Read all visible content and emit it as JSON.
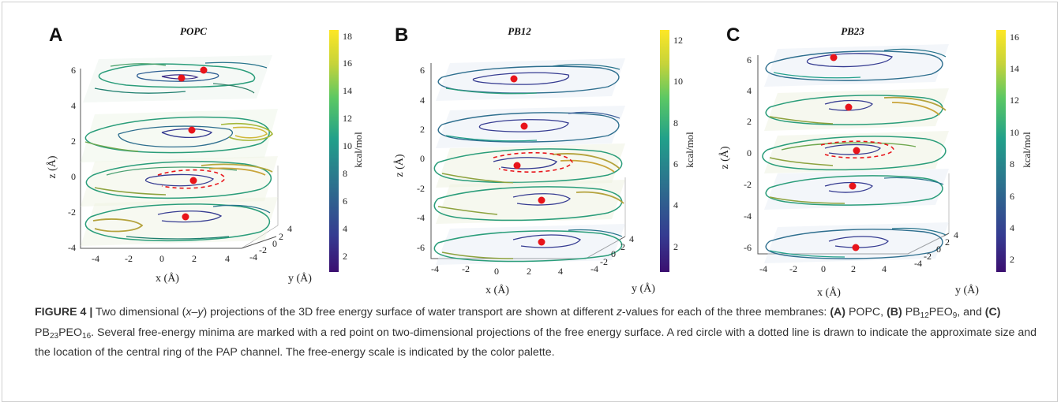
{
  "panels": [
    {
      "letter": "A",
      "title": "POPC",
      "z_ticks": [
        "6",
        "4",
        "2",
        "0",
        "-2",
        "-4"
      ],
      "x_ticks": [
        "-4",
        "-2",
        "0",
        "2",
        "4"
      ],
      "y_ticks": [
        "-4",
        "-2",
        "0",
        "2",
        "4"
      ],
      "colorbar_ticks": [
        "18",
        "16",
        "14",
        "12",
        "10",
        "8",
        "6",
        "4",
        "2"
      ],
      "colorbar_max": 18.5
    },
    {
      "letter": "B",
      "title": "PB12",
      "z_ticks": [
        "6",
        "4",
        "2",
        "0",
        "-2",
        "-4",
        "-6"
      ],
      "x_ticks": [
        "-4",
        "-2",
        "0",
        "2",
        "4"
      ],
      "y_ticks": [
        "-4",
        "-2",
        "0",
        "2",
        "4"
      ],
      "colorbar_ticks": [
        "12",
        "10",
        "8",
        "6",
        "4",
        "2"
      ],
      "colorbar_max": 12.8
    },
    {
      "letter": "C",
      "title": "PB23",
      "z_ticks": [
        "6",
        "4",
        "2",
        "0",
        "-2",
        "-4",
        "-6"
      ],
      "x_ticks": [
        "-4",
        "-2",
        "0",
        "2",
        "4"
      ],
      "y_ticks": [
        "-4",
        "-2",
        "0",
        "2",
        "4"
      ],
      "colorbar_ticks": [
        "16",
        "14",
        "12",
        "10",
        "8",
        "6",
        "4",
        "2"
      ],
      "colorbar_max": 16.5
    }
  ],
  "axis_labels": {
    "x": "x (Å)",
    "y": "y (Å)",
    "z": "z (Å)",
    "colorbar": "kcal/mol"
  },
  "colormap": [
    "#3b0f70",
    "#353b91",
    "#2d6e8e",
    "#21a08a",
    "#5cc863",
    "#c6d33a",
    "#fde725"
  ],
  "caption": {
    "label": "FIGURE 4 |",
    "t1": " Two dimensional (",
    "t1i": "x–y",
    "t2": ") projections of the 3D free energy surface of water transport are shown at different ",
    "t2i": "z",
    "t3": "-values for each of the three membranes: ",
    "pa": "(A)",
    "t4": " POPC, ",
    "pb": "(B)",
    "t5": " PB",
    "s1": "12",
    "t6": "PEO",
    "s2": "9",
    "t7": ", and ",
    "pc": "(C)",
    "t8": " PB",
    "s3": "23",
    "t9": "PEO",
    "s4": "16",
    "t10": ". Several free-energy minima are marked with a red point on two-dimensional projections of the free energy surface. A red circle with a dotted line is drawn to indicate the approximate size and the location of the central ring of the PAP channel. The free-energy scale is indicated by the color palette."
  }
}
